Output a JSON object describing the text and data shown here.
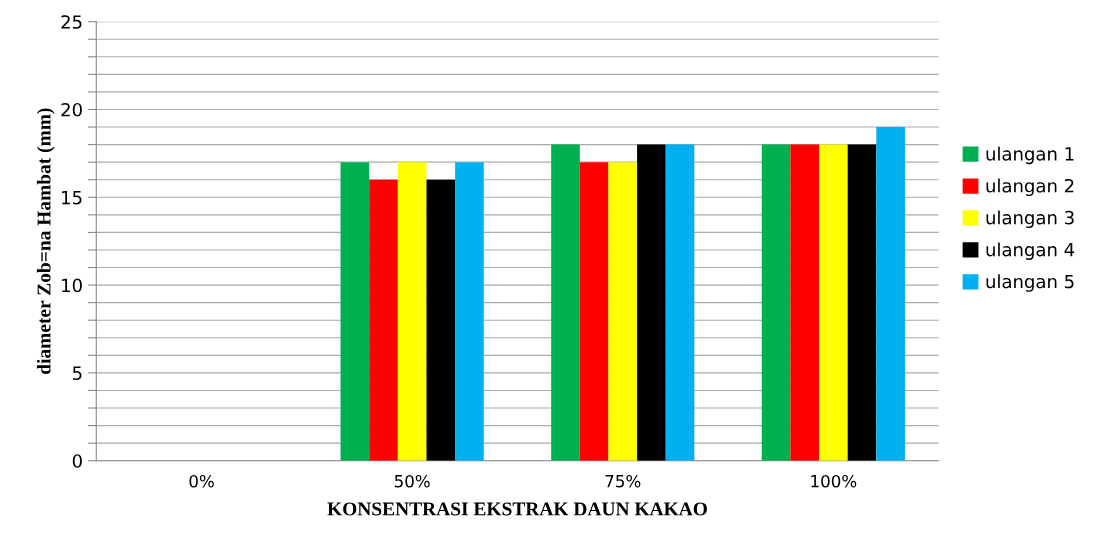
{
  "chart_data": {
    "type": "bar",
    "xlabel": "KONSENTRASI EKSTRAK DAUN KAKAO",
    "ylabel": "diameter Zob=na Hambat (mm)",
    "categories": [
      "0%",
      "50%",
      "75%",
      "100%"
    ],
    "series": [
      {
        "name": "ulangan 1",
        "color": "#00b050",
        "values": [
          0,
          17,
          18,
          18
        ]
      },
      {
        "name": "ulangan 2",
        "color": "#ff0000",
        "values": [
          0,
          16,
          17,
          18
        ]
      },
      {
        "name": "ulangan 3",
        "color": "#ffff00",
        "values": [
          0,
          17,
          17,
          18
        ]
      },
      {
        "name": "ulangan 4",
        "color": "#000000",
        "values": [
          0,
          16,
          18,
          18
        ]
      },
      {
        "name": "ulangan 5",
        "color": "#00b0f0",
        "values": [
          0,
          17,
          18,
          19
        ]
      }
    ],
    "ylim": [
      0,
      25
    ],
    "yticks": [
      0,
      {
        "value": 1,
        "label": null
      },
      {
        "value": 2,
        "label": null
      },
      {
        "value": 3,
        "label": null
      },
      {
        "value": 4,
        "label": null
      },
      5,
      {
        "value": 6,
        "label": null
      },
      {
        "value": 7,
        "label": null
      },
      {
        "value": 8,
        "label": null
      },
      {
        "value": 9,
        "label": null
      },
      10,
      {
        "value": 11,
        "label": null
      },
      {
        "value": 12,
        "label": null
      },
      {
        "value": 13,
        "label": null
      },
      {
        "value": 14,
        "label": null
      },
      15,
      {
        "value": 16,
        "label": null
      },
      {
        "value": 17,
        "label": null
      },
      {
        "value": 18,
        "label": null
      },
      {
        "value": 19,
        "label": null
      },
      20,
      {
        "value": 21,
        "label": null
      },
      {
        "value": 22,
        "label": null
      },
      {
        "value": 23,
        "label": null
      },
      {
        "value": 24,
        "label": null
      },
      25
    ],
    "grid": "y",
    "legend": "right"
  }
}
